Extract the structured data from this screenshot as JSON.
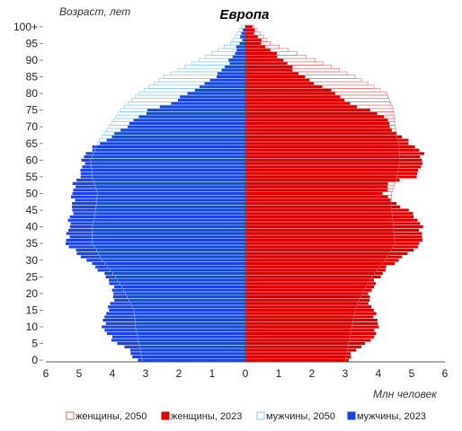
{
  "chart_data": {
    "type": "bar",
    "subtype": "population-pyramid",
    "title": "Европа",
    "ylabel": "Возраст, лет",
    "xlabel": "Млн человек",
    "xlim": [
      -6,
      6
    ],
    "x_tick_labels": [
      "6",
      "5",
      "4",
      "3",
      "2",
      "1",
      "0",
      "1",
      "2",
      "3",
      "4",
      "5",
      "6"
    ],
    "x_tick_values": [
      -6,
      -5,
      -4,
      -3,
      -2,
      -1,
      0,
      1,
      2,
      3,
      4,
      5,
      6
    ],
    "age_tick_labels": [
      "0",
      "5",
      "10",
      "15",
      "20",
      "25",
      "30",
      "35",
      "40",
      "45",
      "50",
      "55",
      "60",
      "65",
      "70",
      "75",
      "80",
      "85",
      "90",
      "95",
      "100+"
    ],
    "ages_count": 101,
    "legend_position": "bottom",
    "series": [
      {
        "name": "женщины, 2050",
        "side": "right",
        "color": "#e26a6a",
        "style": "outline",
        "knots": [
          [
            0,
            3.0
          ],
          [
            5,
            3.1
          ],
          [
            10,
            3.2
          ],
          [
            15,
            3.3
          ],
          [
            20,
            3.5
          ],
          [
            25,
            3.8
          ],
          [
            30,
            4.2
          ],
          [
            35,
            4.5
          ],
          [
            40,
            4.45
          ],
          [
            45,
            4.4
          ],
          [
            50,
            4.4
          ],
          [
            55,
            4.55
          ],
          [
            60,
            4.65
          ],
          [
            65,
            4.6
          ],
          [
            70,
            4.5
          ],
          [
            75,
            4.45
          ],
          [
            80,
            4.25
          ],
          [
            85,
            3.3
          ],
          [
            90,
            2.1
          ],
          [
            95,
            0.75
          ],
          [
            100,
            0.25
          ]
        ]
      },
      {
        "name": "женщины, 2023",
        "side": "right",
        "color": "#dd0000",
        "style": "filled",
        "knots": [
          [
            0,
            3.1
          ],
          [
            3,
            3.3
          ],
          [
            6,
            3.8
          ],
          [
            10,
            4.0
          ],
          [
            14,
            3.9
          ],
          [
            18,
            3.7
          ],
          [
            20,
            3.75
          ],
          [
            24,
            3.95
          ],
          [
            28,
            4.3
          ],
          [
            30,
            4.6
          ],
          [
            32,
            4.9
          ],
          [
            35,
            5.3
          ],
          [
            40,
            5.3
          ],
          [
            42,
            5.2
          ],
          [
            45,
            4.9
          ],
          [
            48,
            4.35
          ],
          [
            50,
            4.2
          ],
          [
            53,
            4.3
          ],
          [
            55,
            5.1
          ],
          [
            58,
            5.3
          ],
          [
            60,
            5.3
          ],
          [
            62,
            5.35
          ],
          [
            64,
            5.1
          ],
          [
            66,
            4.85
          ],
          [
            70,
            4.3
          ],
          [
            72,
            4.35
          ],
          [
            75,
            3.75
          ],
          [
            77,
            3.1
          ],
          [
            80,
            2.75
          ],
          [
            83,
            2.1
          ],
          [
            86,
            1.6
          ],
          [
            90,
            1.15
          ],
          [
            95,
            0.5
          ],
          [
            100,
            0.2
          ]
        ]
      },
      {
        "name": "мужчины, 2050",
        "side": "left",
        "color": "#7fc6ec",
        "style": "outline",
        "knots": [
          [
            0,
            3.1
          ],
          [
            5,
            3.2
          ],
          [
            10,
            3.3
          ],
          [
            15,
            3.35
          ],
          [
            20,
            3.6
          ],
          [
            25,
            3.9
          ],
          [
            30,
            4.3
          ],
          [
            35,
            4.6
          ],
          [
            40,
            4.6
          ],
          [
            45,
            4.5
          ],
          [
            50,
            4.45
          ],
          [
            55,
            4.6
          ],
          [
            60,
            4.65
          ],
          [
            65,
            4.45
          ],
          [
            70,
            4.1
          ],
          [
            75,
            3.75
          ],
          [
            80,
            3.2
          ],
          [
            85,
            2.45
          ],
          [
            90,
            1.4
          ],
          [
            95,
            0.45
          ],
          [
            100,
            0.12
          ]
        ]
      },
      {
        "name": "мужчины, 2023",
        "side": "left",
        "color": "#1a44dd",
        "style": "filled",
        "knots": [
          [
            0,
            3.3
          ],
          [
            3,
            3.5
          ],
          [
            6,
            4.0
          ],
          [
            10,
            4.3
          ],
          [
            14,
            4.2
          ],
          [
            18,
            4.0
          ],
          [
            20,
            3.95
          ],
          [
            24,
            4.1
          ],
          [
            28,
            4.5
          ],
          [
            30,
            4.8
          ],
          [
            32,
            5.05
          ],
          [
            35,
            5.4
          ],
          [
            40,
            5.3
          ],
          [
            42,
            5.3
          ],
          [
            45,
            5.2
          ],
          [
            48,
            5.2
          ],
          [
            50,
            5.2
          ],
          [
            53,
            5.15
          ],
          [
            55,
            5.0
          ],
          [
            58,
            4.9
          ],
          [
            60,
            4.9
          ],
          [
            62,
            4.8
          ],
          [
            64,
            4.55
          ],
          [
            66,
            4.2
          ],
          [
            70,
            3.6
          ],
          [
            72,
            3.35
          ],
          [
            75,
            2.9
          ],
          [
            77,
            2.25
          ],
          [
            80,
            1.75
          ],
          [
            83,
            1.2
          ],
          [
            86,
            0.8
          ],
          [
            90,
            0.45
          ],
          [
            95,
            0.18
          ],
          [
            100,
            0.06
          ]
        ]
      }
    ]
  }
}
